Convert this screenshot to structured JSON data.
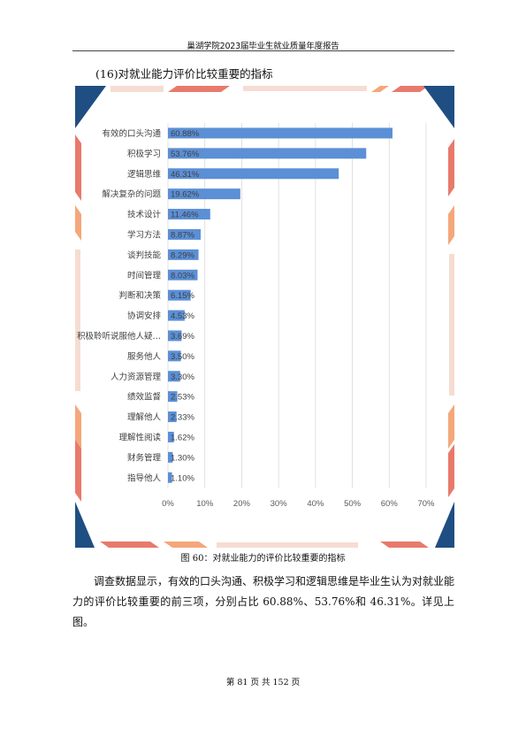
{
  "header": {
    "title": "巢湖学院2023届毕业生就业质量年度报告"
  },
  "section": {
    "title": "(16)对就业能力评价比较重要的指标"
  },
  "chart_data": {
    "type": "bar",
    "orientation": "horizontal",
    "categories": [
      "有效的口头沟通",
      "积极学习",
      "逻辑思维",
      "解决复杂的问题",
      "技术设计",
      "学习方法",
      "谈判技能",
      "时间管理",
      "判断和决策",
      "协调安排",
      "积极聆听说服他人疑…",
      "服务他人",
      "人力资源管理",
      "绩效监督",
      "理解他人",
      "理解性阅读",
      "财务管理",
      "指导他人"
    ],
    "values": [
      60.88,
      53.76,
      46.31,
      19.62,
      11.46,
      8.87,
      8.29,
      8.03,
      6.15,
      4.53,
      3.69,
      3.5,
      3.3,
      2.53,
      2.33,
      1.62,
      1.3,
      1.1
    ],
    "value_labels": [
      "60.88%",
      "53.76%",
      "46.31%",
      "19.62%",
      "11.46%",
      "8.87%",
      "8.29%",
      "8.03%",
      "6.15%",
      "4.53%",
      "3.69%",
      "3.50%",
      "3.30%",
      "2.53%",
      "2.33%",
      "1.62%",
      "1.30%",
      "1.10%"
    ],
    "x_ticks": [
      "0%",
      "10%",
      "20%",
      "30%",
      "40%",
      "50%",
      "60%",
      "70%"
    ],
    "xlim": [
      0,
      70
    ],
    "grid": "vertical",
    "bar_color": "#5b8fd6",
    "title": "",
    "xlabel": "",
    "ylabel": ""
  },
  "decor": {
    "navy": "#1f4e82",
    "coral": "#e87a6c",
    "orange": "#f4a77a",
    "light": "#f6dcd2"
  },
  "caption": "图 60：对就业能力的评价比较重要的指标",
  "body": {
    "paragraph": "调查数据显示，有效的口头沟通、积极学习和逻辑思维是毕业生认为对就业能力的评价比较重要的前三项，分别占比 60.88%、53.76%和 46.31%。详见上图。"
  },
  "footer": {
    "page_text": "第 81 页 共 152 页"
  }
}
